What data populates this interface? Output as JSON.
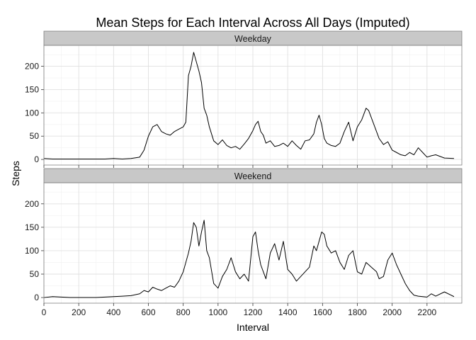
{
  "chart_data": {
    "type": "line",
    "title": "Mean Steps for Each Interval Across All Days (Imputed)",
    "xlabel": "Interval",
    "ylabel": "Steps",
    "xlim": [
      0,
      2400
    ],
    "ylim": [
      -12,
      245
    ],
    "x_ticks": [
      0,
      200,
      400,
      600,
      800,
      1000,
      1200,
      1400,
      1600,
      1800,
      2000,
      2200
    ],
    "y_ticks": [
      0,
      50,
      100,
      150,
      200
    ],
    "grid": true,
    "panels": [
      {
        "label": "Weekday",
        "x": [
          0,
          50,
          100,
          150,
          200,
          250,
          300,
          350,
          400,
          450,
          500,
          550,
          575,
          600,
          625,
          650,
          675,
          700,
          725,
          750,
          775,
          800,
          815,
          830,
          845,
          860,
          875,
          890,
          905,
          920,
          935,
          950,
          975,
          1000,
          1025,
          1050,
          1075,
          1100,
          1125,
          1150,
          1175,
          1200,
          1215,
          1230,
          1245,
          1260,
          1275,
          1300,
          1325,
          1350,
          1375,
          1400,
          1425,
          1450,
          1475,
          1500,
          1525,
          1550,
          1565,
          1580,
          1595,
          1610,
          1625,
          1650,
          1675,
          1700,
          1725,
          1750,
          1775,
          1800,
          1825,
          1850,
          1865,
          1880,
          1895,
          1910,
          1925,
          1950,
          1975,
          2000,
          2025,
          2050,
          2075,
          2100,
          2125,
          2150,
          2175,
          2200,
          2225,
          2250,
          2300,
          2355
        ],
        "values": [
          2,
          1,
          1,
          1,
          1,
          1,
          1,
          1,
          2,
          1,
          2,
          5,
          20,
          50,
          70,
          75,
          60,
          55,
          52,
          60,
          65,
          70,
          80,
          180,
          200,
          230,
          210,
          190,
          165,
          110,
          95,
          70,
          40,
          32,
          42,
          30,
          25,
          28,
          22,
          33,
          45,
          62,
          75,
          82,
          60,
          52,
          35,
          40,
          28,
          30,
          35,
          28,
          40,
          30,
          22,
          40,
          42,
          55,
          80,
          95,
          75,
          45,
          35,
          30,
          28,
          35,
          60,
          80,
          40,
          70,
          85,
          110,
          105,
          90,
          75,
          60,
          45,
          32,
          38,
          20,
          15,
          10,
          8,
          15,
          10,
          25,
          15,
          5,
          8,
          10,
          3,
          2
        ]
      },
      {
        "label": "Weekend",
        "x": [
          0,
          50,
          100,
          150,
          200,
          250,
          300,
          350,
          400,
          450,
          500,
          550,
          575,
          600,
          625,
          650,
          675,
          700,
          725,
          750,
          775,
          800,
          815,
          830,
          845,
          860,
          875,
          890,
          905,
          920,
          935,
          950,
          975,
          1000,
          1025,
          1050,
          1075,
          1100,
          1125,
          1150,
          1175,
          1200,
          1215,
          1230,
          1245,
          1260,
          1275,
          1300,
          1325,
          1350,
          1375,
          1400,
          1425,
          1450,
          1475,
          1500,
          1525,
          1550,
          1565,
          1580,
          1595,
          1610,
          1625,
          1650,
          1675,
          1700,
          1725,
          1750,
          1775,
          1800,
          1825,
          1850,
          1865,
          1880,
          1895,
          1910,
          1925,
          1950,
          1975,
          2000,
          2025,
          2050,
          2075,
          2100,
          2125,
          2150,
          2175,
          2200,
          2225,
          2250,
          2300,
          2355
        ],
        "values": [
          0,
          2,
          1,
          0,
          0,
          0,
          0,
          1,
          2,
          3,
          4,
          8,
          15,
          12,
          22,
          18,
          15,
          20,
          25,
          22,
          35,
          55,
          75,
          95,
          120,
          160,
          150,
          110,
          140,
          165,
          100,
          85,
          30,
          20,
          45,
          60,
          85,
          55,
          40,
          50,
          35,
          130,
          140,
          100,
          70,
          55,
          40,
          95,
          115,
          80,
          120,
          60,
          50,
          35,
          45,
          55,
          65,
          110,
          100,
          120,
          140,
          135,
          110,
          95,
          100,
          75,
          60,
          90,
          100,
          55,
          50,
          75,
          70,
          65,
          60,
          55,
          40,
          45,
          80,
          95,
          70,
          50,
          30,
          15,
          5,
          3,
          2,
          1,
          8,
          3,
          12,
          2
        ]
      }
    ]
  }
}
